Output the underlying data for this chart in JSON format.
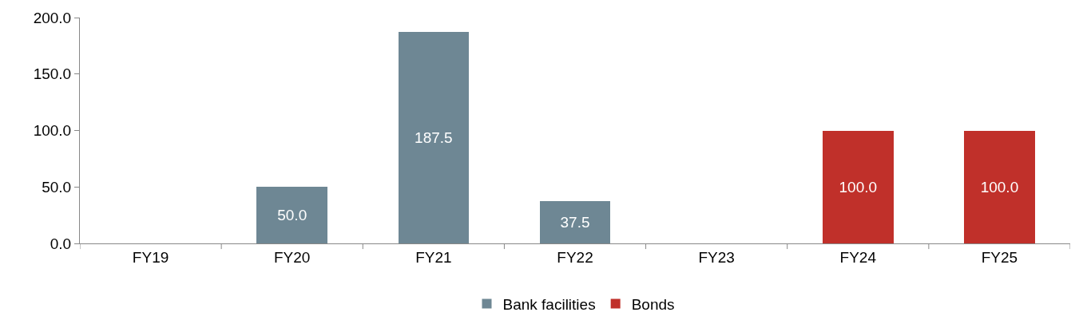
{
  "chart_data": {
    "type": "bar",
    "stacked": true,
    "categories": [
      "FY19",
      "FY20",
      "FY21",
      "FY22",
      "FY23",
      "FY24",
      "FY25"
    ],
    "series": [
      {
        "name": "Bank facilities",
        "color": "#6e8794",
        "values": [
          null,
          50,
          187.5,
          37.5,
          null,
          null,
          null
        ],
        "value_labels": [
          null,
          "50.0",
          "187.5",
          "37.5",
          null,
          null,
          null
        ]
      },
      {
        "name": "Bonds",
        "color": "#c0302a",
        "values": [
          null,
          null,
          null,
          null,
          null,
          100,
          100
        ],
        "value_labels": [
          null,
          null,
          null,
          null,
          null,
          "100.0",
          "100.0"
        ]
      }
    ],
    "ylim": [
      0,
      200
    ],
    "yticks": [
      {
        "value": 0,
        "label": "0.0"
      },
      {
        "value": 50,
        "label": "50.0"
      },
      {
        "value": 100,
        "label": "100.0"
      },
      {
        "value": 150,
        "label": "150.0"
      },
      {
        "value": 200,
        "label": "200.0"
      }
    ],
    "legend": "bottom"
  }
}
